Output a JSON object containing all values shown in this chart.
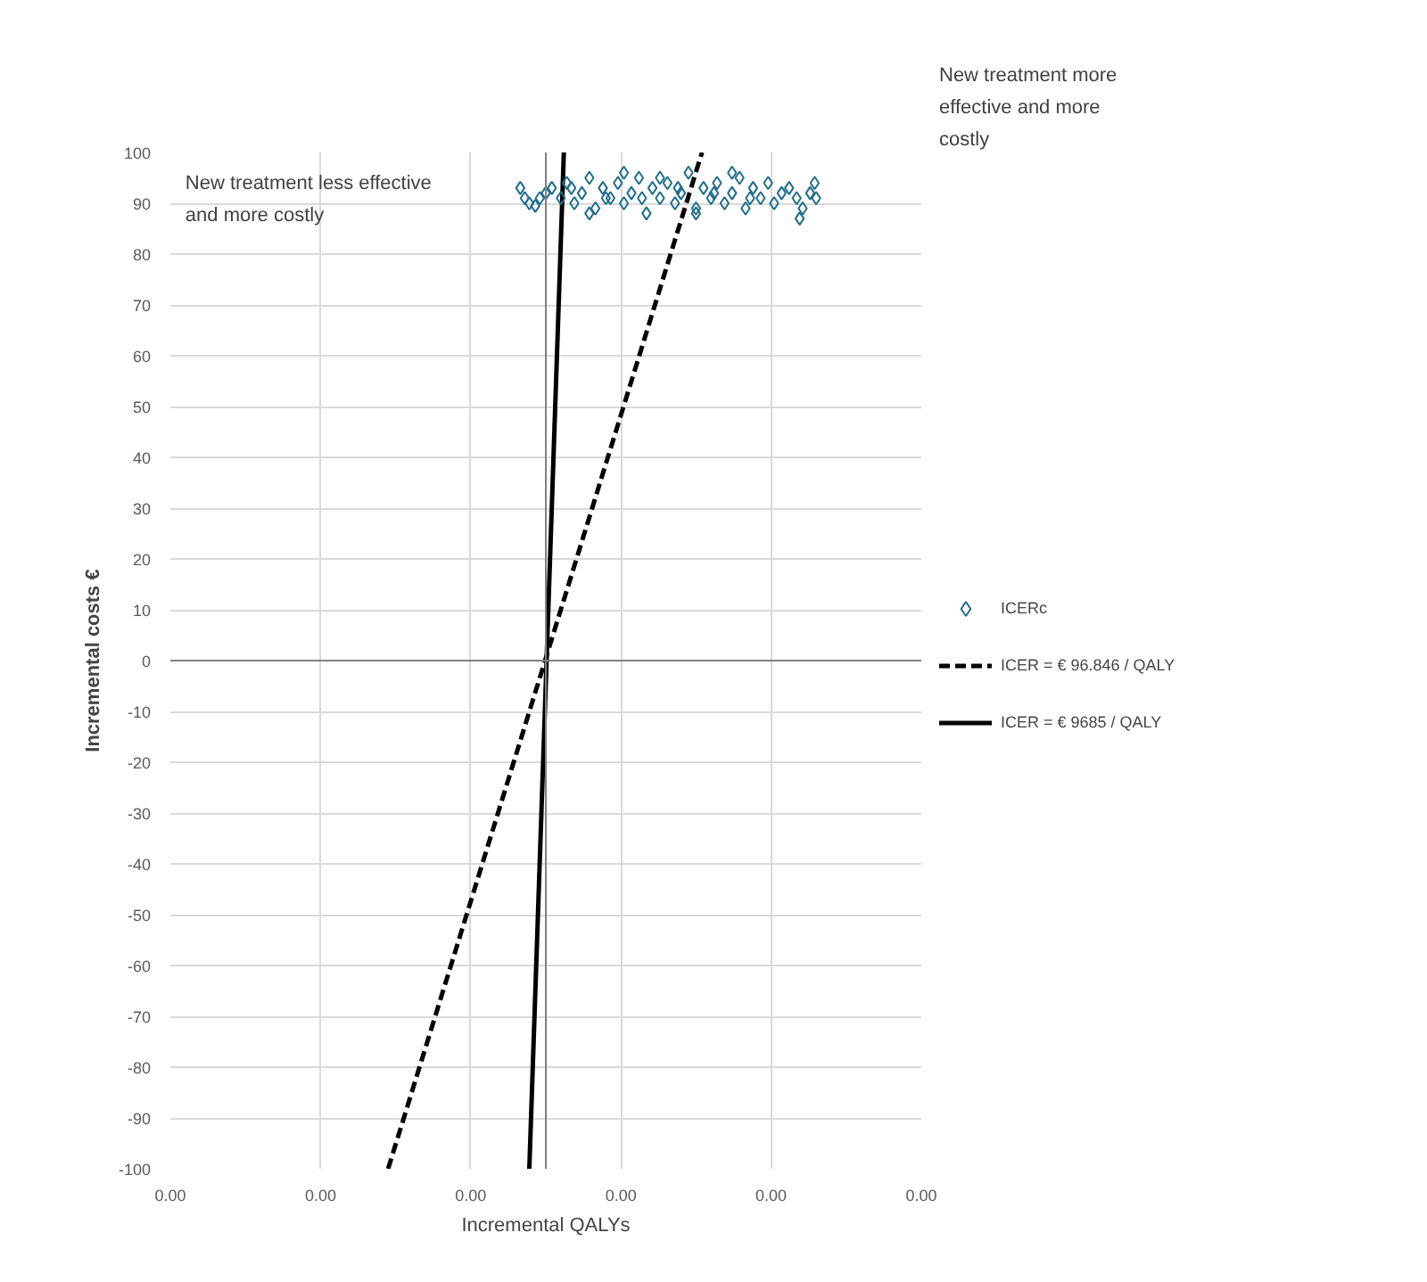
{
  "chart_data": {
    "type": "scatter",
    "xlabel": "Incremental QALYs",
    "ylabel": "Incremental costs €",
    "annotations": [
      "New treatment less effective and more costly",
      "New treatment more effective and more costly"
    ],
    "xlim": [
      -0.0025,
      0.0025
    ],
    "ylim": [
      -100,
      100
    ],
    "xticks": [
      {
        "value": -0.0025,
        "label": "0.00"
      },
      {
        "value": -0.0015,
        "label": "0.00"
      },
      {
        "value": -0.0005,
        "label": "0.00"
      },
      {
        "value": 0.0005,
        "label": "0.00"
      },
      {
        "value": 0.0015,
        "label": "0.00"
      },
      {
        "value": 0.0025,
        "label": "0.00"
      }
    ],
    "yticks": [
      -100,
      -90,
      -80,
      -70,
      -60,
      -50,
      -40,
      -30,
      -20,
      -10,
      0,
      10,
      20,
      30,
      40,
      50,
      60,
      70,
      80,
      90,
      100
    ],
    "grid": true,
    "legend": "right",
    "series": [
      {
        "name": "ICERc",
        "marker": "diamond",
        "color": "#1f6e8c",
        "x": [
          -0.00017,
          -0.00014,
          -0.00011,
          -7e-05,
          -4e-05,
          0.0,
          4e-05,
          0.0001,
          0.00014,
          0.00019,
          0.00024,
          0.00029,
          0.00033,
          0.00038,
          0.00043,
          0.00048,
          0.00052,
          0.00057,
          0.00062,
          0.00067,
          0.00071,
          0.00076,
          0.00081,
          0.00086,
          0.0009,
          0.00095,
          0.001,
          0.00105,
          0.0011,
          0.00114,
          0.00119,
          0.00124,
          0.00129,
          0.00133,
          0.00138,
          0.00143,
          0.00148,
          0.00152,
          0.00157,
          0.00162,
          0.00167,
          0.00171,
          0.00176,
          0.0018,
          0.00179,
          0.00169,
          0.00029,
          0.00052,
          0.00076,
          0.001,
          0.00124,
          0.00017,
          0.0004,
          0.00064,
          0.00088,
          0.00112,
          0.00136
        ],
        "values": [
          93,
          91,
          90,
          89.5,
          91,
          92,
          93,
          91,
          94,
          90,
          92,
          95,
          89,
          93,
          91,
          94,
          90,
          92,
          95,
          88,
          93,
          91,
          94,
          90,
          92,
          96,
          89,
          93,
          91,
          94,
          90,
          92,
          95,
          89,
          93,
          91,
          94,
          90,
          92,
          93,
          91,
          89,
          92,
          91,
          94,
          87,
          88,
          96,
          95,
          88,
          96,
          93,
          91,
          91,
          93,
          92,
          91
        ]
      },
      {
        "name": "ICER = € 96.846 / QALY",
        "type": "line",
        "line_style": "dashed",
        "color": "#000000",
        "x": [
          -0.00105,
          0.00104
        ],
        "values": [
          -100,
          100
        ]
      },
      {
        "name": "ICER = € 9685 / QALY",
        "type": "line",
        "line_style": "solid",
        "color": "#000000",
        "x": [
          -0.00011,
          0.00012
        ],
        "values": [
          -100,
          100
        ]
      }
    ]
  }
}
